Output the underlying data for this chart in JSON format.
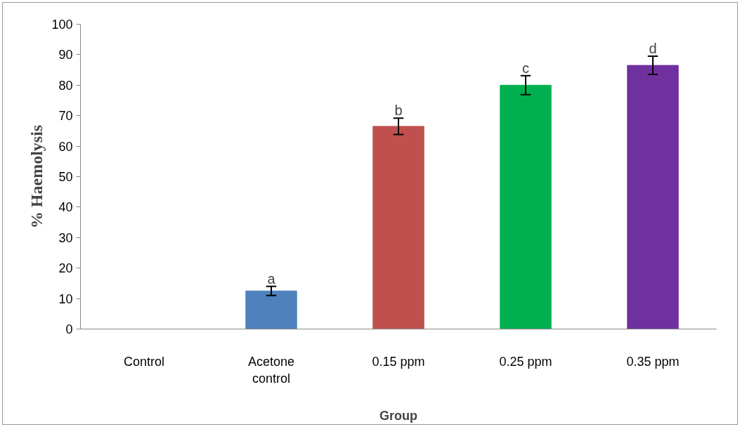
{
  "chart_data": {
    "type": "bar",
    "xlabel": "Group",
    "ylabel": "% Haemolysis",
    "categories": [
      "Control",
      "Acetone\ncontrol",
      "0.15 ppm",
      "0.25 ppm",
      "0.35 ppm"
    ],
    "values": [
      0,
      12.5,
      66.5,
      80,
      86.5
    ],
    "colors": [
      "#4f81bd",
      "#4f81bd",
      "#c0504d",
      "#00b050",
      "#7030a0"
    ],
    "errors": [
      null,
      1.5,
      2.7,
      3.1,
      3
    ],
    "ylim": [
      0,
      100
    ],
    "yticks": [
      0,
      10,
      20,
      30,
      40,
      50,
      60,
      70,
      80,
      90,
      100
    ],
    "grid": false,
    "annotations": [
      {
        "text": "a",
        "x": "Acetone\ncontrol",
        "y": 14
      },
      {
        "text": "b",
        "x": "0.15 ppm",
        "y": 69.2
      },
      {
        "text": "c",
        "x": "0.25 ppm",
        "y": 83.1
      },
      {
        "text": "d",
        "x": "0.35 ppm",
        "y": 89.5
      }
    ]
  }
}
